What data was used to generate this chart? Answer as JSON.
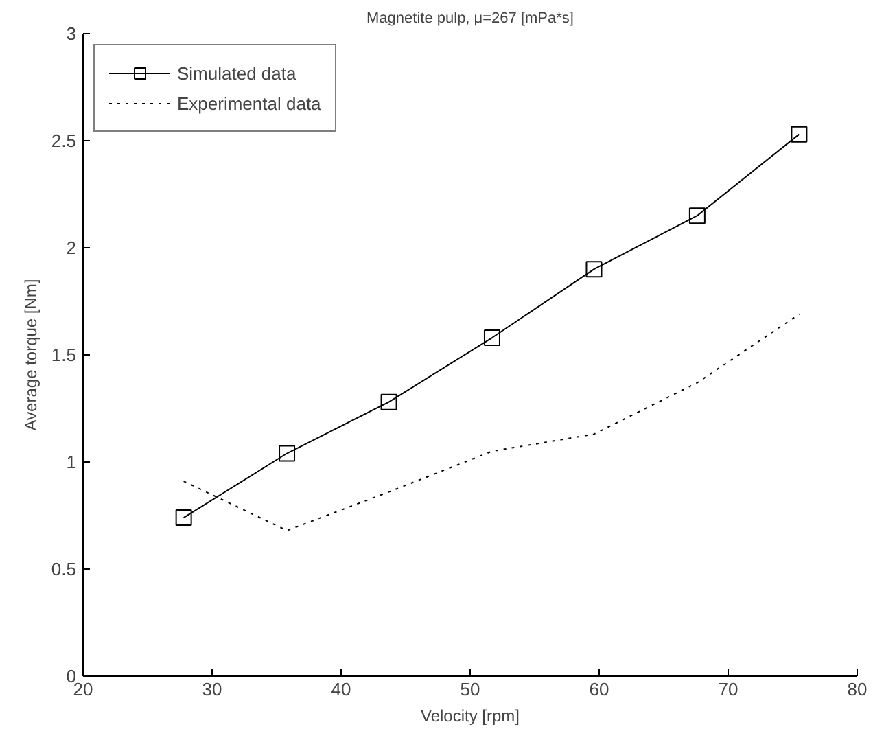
{
  "chart_data": {
    "type": "line",
    "title": "Magnetite pulp, μ=267 [mPa*s]",
    "xlabel": "Velocity [rpm]",
    "ylabel": "Average torque [Nm]",
    "x": [
      27.8,
      35.8,
      43.7,
      51.7,
      59.6,
      67.6,
      75.5
    ],
    "series": [
      {
        "name": "Simulated data",
        "color": "#000000",
        "values": [
          0.74,
          1.04,
          1.28,
          1.58,
          1.9,
          2.15,
          2.53
        ],
        "marker": "square",
        "line_style": "solid"
      },
      {
        "name": "Experimental data",
        "color": "#000000",
        "values": [
          0.91,
          0.68,
          0.86,
          1.05,
          1.13,
          1.37,
          1.69
        ],
        "marker": "none",
        "line_style": "dotted"
      }
    ],
    "xlim": [
      20,
      80
    ],
    "xticks": [
      20,
      30,
      40,
      50,
      60,
      70,
      80
    ],
    "ylim": [
      0,
      3
    ],
    "yticks": [
      0,
      0.5,
      1,
      1.5,
      2,
      2.5,
      3
    ],
    "grid": false,
    "legend": "top left"
  }
}
